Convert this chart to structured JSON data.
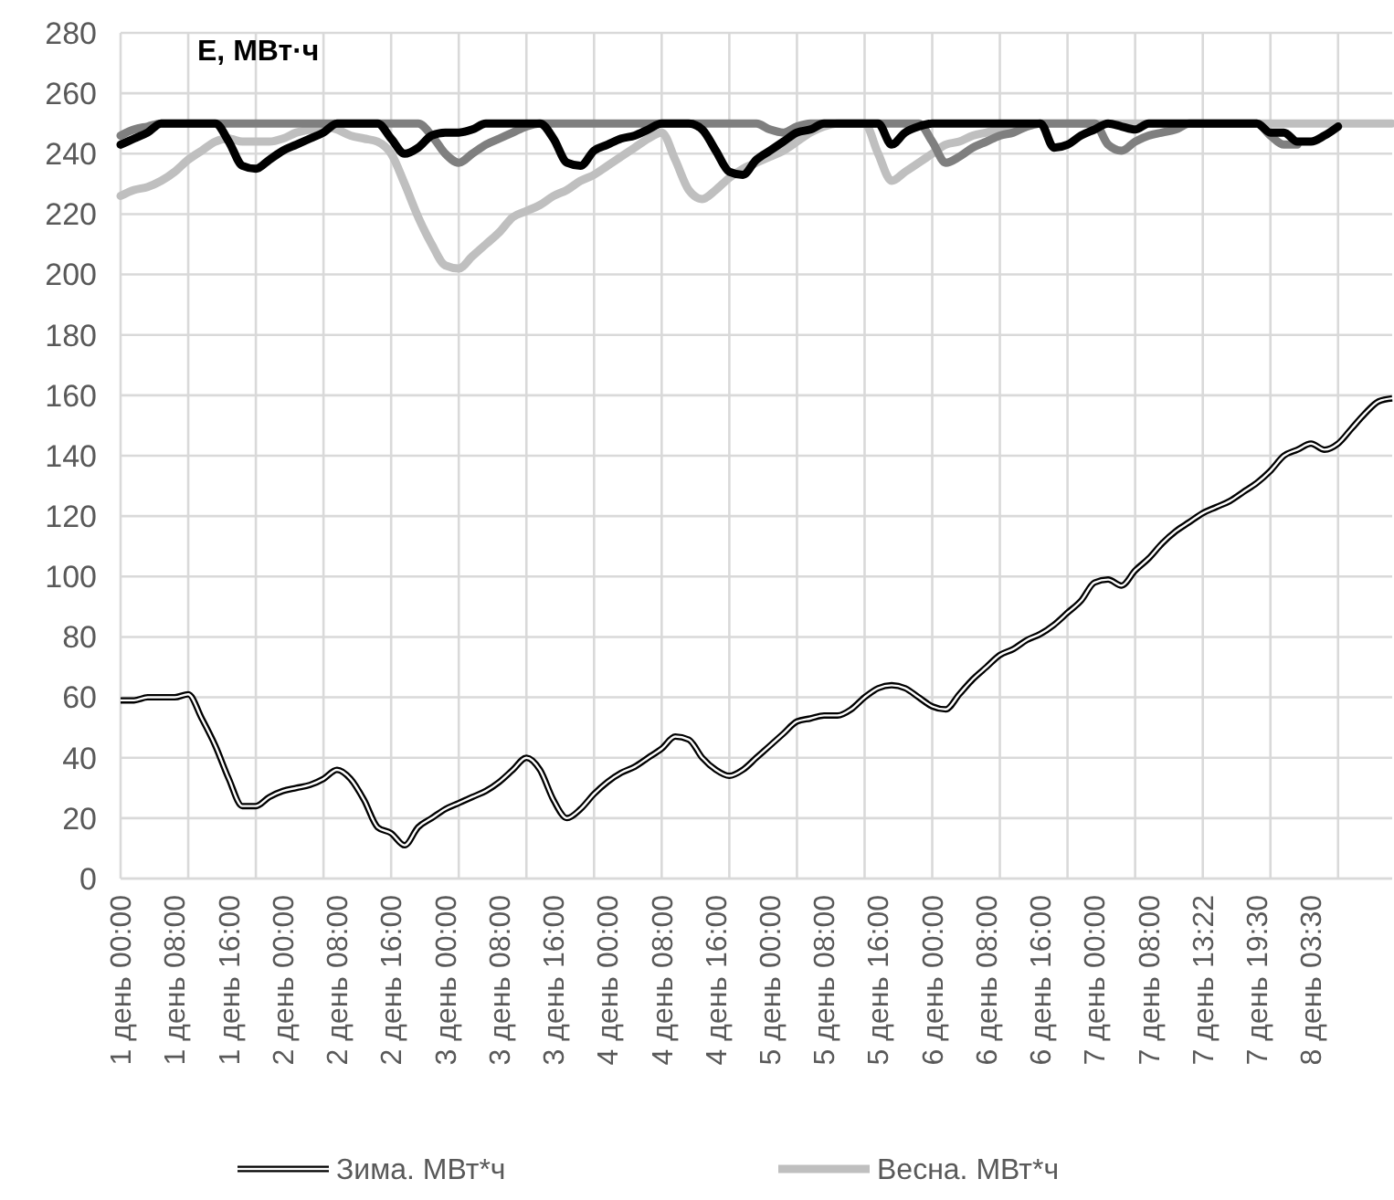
{
  "chart_data": {
    "type": "line",
    "title": "E, МВт·ч",
    "categories": [
      "1 день 00:00",
      null,
      null,
      null,
      "1 день 08:00",
      null,
      null,
      null,
      "1 день 16:00",
      null,
      null,
      null,
      "2 день 00:00",
      null,
      null,
      null,
      "2 день 08:00",
      null,
      null,
      null,
      "2 день 16:00",
      null,
      null,
      null,
      "3 день 00:00",
      null,
      null,
      null,
      "3 день 08:00",
      null,
      null,
      null,
      "3 день 16:00",
      null,
      null,
      null,
      "4 день 00:00",
      null,
      null,
      null,
      "4 день 08:00",
      null,
      null,
      null,
      "4 день 16:00",
      null,
      null,
      null,
      "5 день 00:00",
      null,
      null,
      null,
      "5 день 08:00",
      null,
      null,
      null,
      "5 день 16:00",
      null,
      null,
      null,
      "6 день 00:00",
      null,
      null,
      null,
      "6 день 08:00",
      null,
      null,
      null,
      "6 день 16:00",
      null,
      null,
      null,
      "7 день 00:00",
      null,
      null,
      null,
      "7 день 08:00",
      null,
      null,
      null,
      "7 день 13:22",
      null,
      null,
      null,
      "7 день 19:30",
      null,
      null,
      null,
      "8 день 03:30",
      null,
      null,
      null,
      null,
      null,
      null
    ],
    "series": [
      {
        "name": "Зима. МВт*ч",
        "color": "#000000",
        "values": [
          59,
          59,
          60,
          60,
          60,
          61,
          53,
          44,
          33,
          24,
          24,
          27,
          29,
          30,
          31,
          33,
          36,
          33,
          26,
          17,
          15,
          11,
          17,
          20,
          23,
          25,
          27,
          29,
          32,
          36,
          40,
          36,
          26,
          20,
          23,
          28,
          32,
          35,
          37,
          40,
          43,
          47,
          46,
          40,
          36,
          34,
          36,
          40,
          44,
          48,
          52,
          53,
          54,
          54,
          56,
          60,
          63,
          64,
          63,
          60,
          57,
          56,
          61,
          66,
          70,
          74,
          76,
          79,
          81,
          84,
          88,
          92,
          98,
          99,
          97,
          102,
          106,
          111,
          115,
          118,
          121,
          123,
          125,
          128,
          131,
          135,
          140,
          142,
          144,
          142,
          144,
          149,
          154,
          158,
          159
        ]
      },
      {
        "name": "Весна. МВт*ч",
        "color": "#bfbfbf",
        "values": [
          226,
          228,
          229,
          231,
          234,
          238,
          241,
          244,
          245,
          244,
          244,
          244,
          245,
          247,
          248,
          249,
          248,
          246,
          245,
          244,
          240,
          230,
          219,
          210,
          203,
          202,
          206,
          210,
          214,
          219,
          221,
          223,
          226,
          228,
          231,
          233,
          236,
          239,
          242,
          245,
          247,
          238,
          228,
          225,
          228,
          232,
          235,
          237,
          239,
          241,
          244,
          247,
          249,
          250,
          250,
          250,
          240,
          231,
          234,
          237,
          240,
          243,
          244,
          246,
          247,
          248,
          248,
          249,
          250,
          250,
          250,
          250,
          250,
          250,
          250,
          250,
          250,
          250,
          250,
          250,
          250,
          250,
          250,
          250,
          250,
          250,
          250,
          250,
          250,
          250,
          250,
          250,
          250,
          250,
          250
        ]
      },
      {
        "color": "#7f7f7f",
        "values": [
          246,
          248,
          249,
          250,
          250,
          250,
          250,
          250,
          250,
          250,
          250,
          250,
          250,
          250,
          250,
          250,
          250,
          250,
          250,
          250,
          250,
          250,
          250,
          246,
          240,
          237,
          240,
          243,
          245,
          247,
          249,
          250,
          250,
          250,
          250,
          250,
          250,
          250,
          250,
          250,
          250,
          250,
          250,
          250,
          250,
          250,
          250,
          250,
          248,
          247,
          249,
          250,
          250,
          250,
          250,
          250,
          250,
          250,
          250,
          250,
          244,
          237,
          239,
          242,
          244,
          246,
          247,
          249,
          250,
          250,
          250,
          250,
          250,
          243,
          241,
          244,
          246,
          247,
          248,
          250,
          250,
          250,
          250,
          250,
          250,
          246,
          243,
          243,
          null,
          null,
          null,
          null,
          null,
          null,
          null
        ]
      },
      {
        "color": "#000000",
        "values": [
          243,
          245,
          247,
          250,
          250,
          250,
          250,
          250,
          244,
          236,
          235,
          238,
          241,
          243,
          245,
          247,
          250,
          250,
          250,
          250,
          245,
          240,
          242,
          246,
          247,
          247,
          248,
          250,
          250,
          250,
          250,
          250,
          245,
          237,
          236,
          241,
          243,
          245,
          246,
          248,
          250,
          250,
          250,
          248,
          241,
          234,
          233,
          238,
          241,
          244,
          247,
          248,
          250,
          250,
          250,
          250,
          250,
          243,
          247,
          249,
          250,
          250,
          250,
          250,
          250,
          250,
          250,
          250,
          250,
          242,
          243,
          246,
          248,
          250,
          249,
          248,
          250,
          250,
          250,
          250,
          250,
          250,
          250,
          250,
          250,
          247,
          247,
          244,
          244,
          246,
          249,
          null,
          null,
          null,
          null
        ]
      }
    ],
    "ylim": [
      0,
      280
    ],
    "yticks": [
      0,
      20,
      40,
      60,
      80,
      100,
      120,
      140,
      160,
      180,
      200,
      220,
      240,
      260,
      280
    ],
    "grid": true,
    "legend": "bottom",
    "line_style": "solid",
    "marker": "none"
  }
}
